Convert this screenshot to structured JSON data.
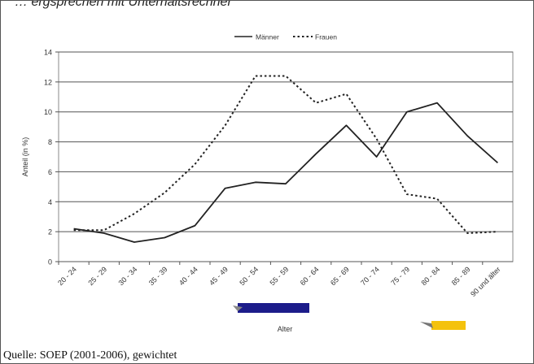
{
  "header_text": "… ergsprechen mit Unterhaltsrechner",
  "source_note": "Quelle: SOEP (2001-2006), gewichtet",
  "chart_data": {
    "type": "line",
    "categories": [
      "20 - 24",
      "25 - 29",
      "30 - 34",
      "35 - 39",
      "40 - 44",
      "45 - 49",
      "50 - 54",
      "55 - 59",
      "60 - 64",
      "65 - 69",
      "70 - 74",
      "75 - 79",
      "80 - 84",
      "85 - 89",
      "90 und älter"
    ],
    "series": [
      {
        "name": "Männer",
        "values": [
          2.2,
          1.9,
          1.3,
          1.6,
          2.4,
          4.9,
          5.3,
          5.2,
          7.2,
          9.1,
          7.0,
          10.0,
          10.6,
          8.4,
          6.6
        ],
        "style": "solid",
        "color": "#222222"
      },
      {
        "name": "Frauen",
        "values": [
          2.1,
          2.1,
          3.2,
          4.6,
          6.5,
          9.1,
          12.4,
          12.4,
          10.6,
          11.2,
          8.2,
          4.5,
          4.2,
          1.9,
          2.0
        ],
        "style": "dotted",
        "color": "#222222"
      }
    ],
    "xlabel": "Alter",
    "ylabel": "Anteil (in %)",
    "ylim": [
      0,
      14
    ],
    "yticks": [
      0,
      2,
      4,
      6,
      8,
      10,
      12,
      14
    ],
    "grid": true,
    "legend_position": "top-center",
    "highlight_colors": {
      "blue_bar": "#1c1c8a",
      "yellow_bar": "#f4c20d"
    }
  }
}
